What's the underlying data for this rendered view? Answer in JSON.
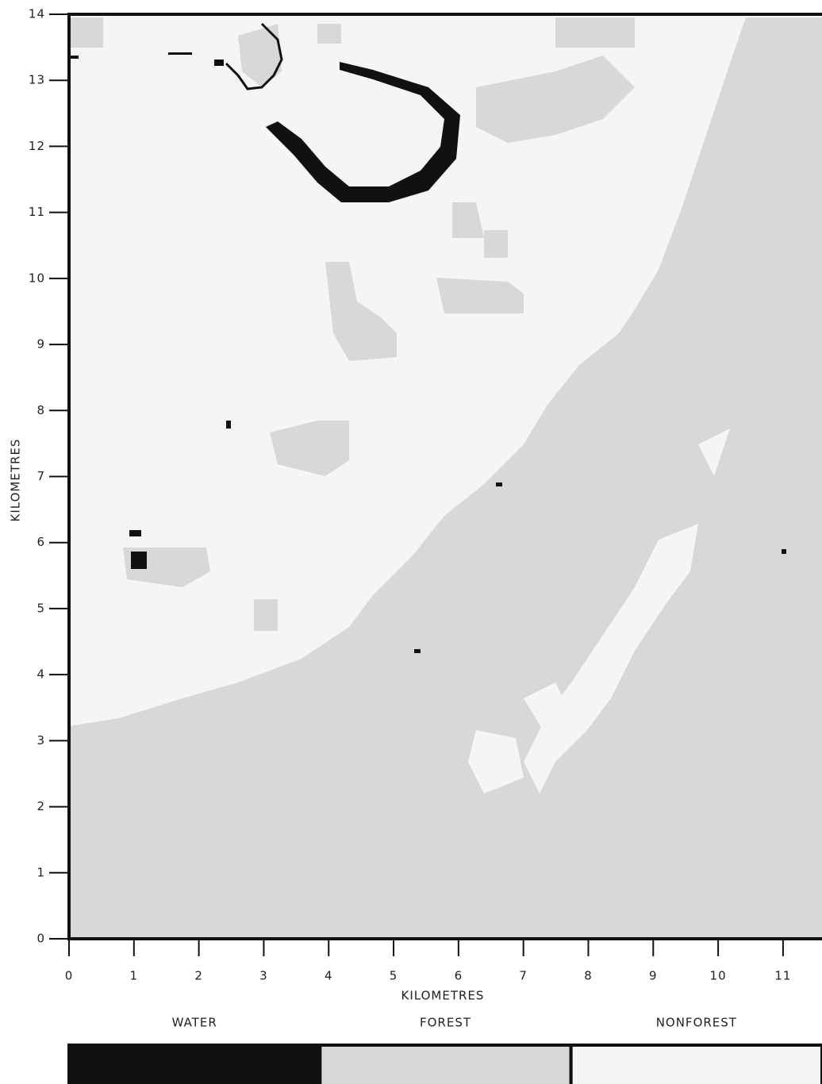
{
  "chart_data": {
    "type": "map",
    "xlabel": "KILOMETRES",
    "ylabel": "KILOMETRES",
    "xlim": [
      0,
      11.6
    ],
    "ylim": [
      0,
      14
    ],
    "xticks": [
      0,
      1,
      2,
      3,
      4,
      5,
      6,
      7,
      8,
      9,
      10,
      11
    ],
    "yticks": [
      0,
      1,
      2,
      3,
      4,
      5,
      6,
      7,
      8,
      9,
      10,
      11,
      12,
      13,
      14
    ],
    "legend": [
      {
        "name": "WATER",
        "color": "#111111"
      },
      {
        "name": "FOREST",
        "color": "#d8d8d8"
      },
      {
        "name": "NONFOREST",
        "color": "#f5f5f5"
      }
    ]
  }
}
